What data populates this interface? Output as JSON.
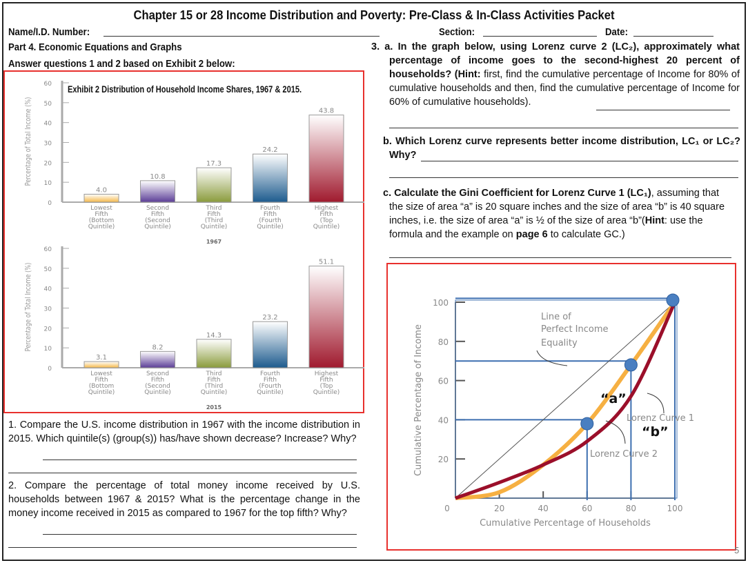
{
  "header": {
    "title": "Chapter 15 or 28  Income Distribution and Poverty: Pre-Class & In-Class Activities Packet",
    "name_label": "Name/I.D. Number:",
    "section_label": "Section:",
    "date_label": "Date:"
  },
  "left": {
    "part": "Part 4. Economic Equations and Graphs",
    "instructions": "Answer questions  1 and 2 based on Exhibit 2 below:",
    "q1": "1. Compare the U.S. income distribution in 1967 with the income distribution in 2015. Which quintile(s) (group(s)) has/have shown decrease? Increase? Why?",
    "q2": "2. Compare the percentage of total money income received by U.S. households between 1967 & 2015? What is the percentage change in the money income received in 2015 as compared to 1967 for  the top fifth? Why?"
  },
  "right": {
    "q3a": "3. a. In the graph below, using Lorenz curve 2 (LC₂), approximately what percentage  of income goes to the second-highest  20 percent  of households?",
    "q3a_hint_label": "(Hint:",
    "q3a_hint": " first, find the cumulative percentage of Income for 80% of cumulative households and then,  find the cumulative percentage of Income for 60% of cumulative households).",
    "q3b": "b. Which Lorenz curve represents better income distribution, LC₁ or LC₂? Why?",
    "q3c_bold": "c. Calculate the Gini Coefficient for Lorenz Curve 1 (LC₁)",
    "q3c": ", assuming that the size of area “a” is 20 square inches and the size of area “b” is 40 square inches, i.e. the size of area “a” is ½ of the size of  area “b”(",
    "q3c_hint": "Hint",
    "q3c_2": ": use the formula and the  example on ",
    "q3c_page": "page 6",
    "q3c_3": " to calculate GC.)"
  },
  "page_number": "5",
  "chart_data": [
    {
      "type": "bar",
      "title": "Exhibit 2  Distribution of Household Income Shares, 1967 & 2015.",
      "xlabel": "1967",
      "ylabel": "Percentage of Total Income (%)",
      "ylim": [
        0,
        60
      ],
      "yticks": [
        0,
        10,
        20,
        30,
        40,
        50,
        60
      ],
      "categories": [
        "Lowest Fifth (Bottom Quintile)",
        "Second Fifth (Second Quintile)",
        "Third Fifth (Third Quintile)",
        "Fourth Fifth (Fourth Quintile)",
        "Highest Fifth (Top Quintile)"
      ],
      "values": [
        4.0,
        10.8,
        17.3,
        24.2,
        43.8
      ],
      "colors": [
        "#f5b94a",
        "#5b3d96",
        "#8a9b3c",
        "#1d5b8e",
        "#a01a2e"
      ]
    },
    {
      "type": "bar",
      "xlabel": "2015",
      "ylabel": "Percentage of Total Income (%)",
      "ylim": [
        0,
        60
      ],
      "yticks": [
        0,
        10,
        20,
        30,
        40,
        50,
        60
      ],
      "categories": [
        "Lowest Fifth (Bottom Quintile)",
        "Second Fifth (Second Quintile)",
        "Third Fifth (Third Quintile)",
        "Fourth Fifth (Fourth Quintile)",
        "Highest Fifth (Top Quintile)"
      ],
      "values": [
        3.1,
        8.2,
        14.3,
        23.2,
        51.1
      ],
      "colors": [
        "#f5b94a",
        "#5b3d96",
        "#8a9b3c",
        "#1d5b8e",
        "#a01a2e"
      ]
    },
    {
      "type": "line",
      "xlabel": "Cumulative Percentage of Households",
      "ylabel": "Cumulative Percentage of Income",
      "xlim": [
        0,
        100
      ],
      "ylim": [
        0,
        100
      ],
      "xticks": [
        0,
        20,
        40,
        60,
        80,
        100
      ],
      "yticks": [
        20,
        40,
        60,
        80,
        100
      ],
      "series": [
        {
          "name": "Line of Perfect Income Equality",
          "x": [
            0,
            100
          ],
          "y": [
            0,
            100
          ],
          "color": "#555555"
        },
        {
          "name": "Lorenz Curve 2",
          "x": [
            0,
            20,
            40,
            60,
            80,
            100
          ],
          "y": [
            0,
            3,
            17,
            38,
            68,
            100
          ],
          "color": "#f6b042"
        },
        {
          "name": "Lorenz Curve 1",
          "x": [
            0,
            20,
            40,
            60,
            80,
            100
          ],
          "y": [
            0,
            8,
            17,
            29,
            52,
            100
          ],
          "color": "#9b0f2a"
        }
      ],
      "highlight_points": [
        {
          "x": 60,
          "y": 38
        },
        {
          "x": 80,
          "y": 68
        },
        {
          "x": 100,
          "y": 100
        }
      ],
      "annotations": [
        "Line of",
        "Perfect Income",
        "Equality",
        "“a”",
        "“b”",
        "Lorenz Curve 1",
        "Lorenz Curve 2"
      ]
    }
  ]
}
